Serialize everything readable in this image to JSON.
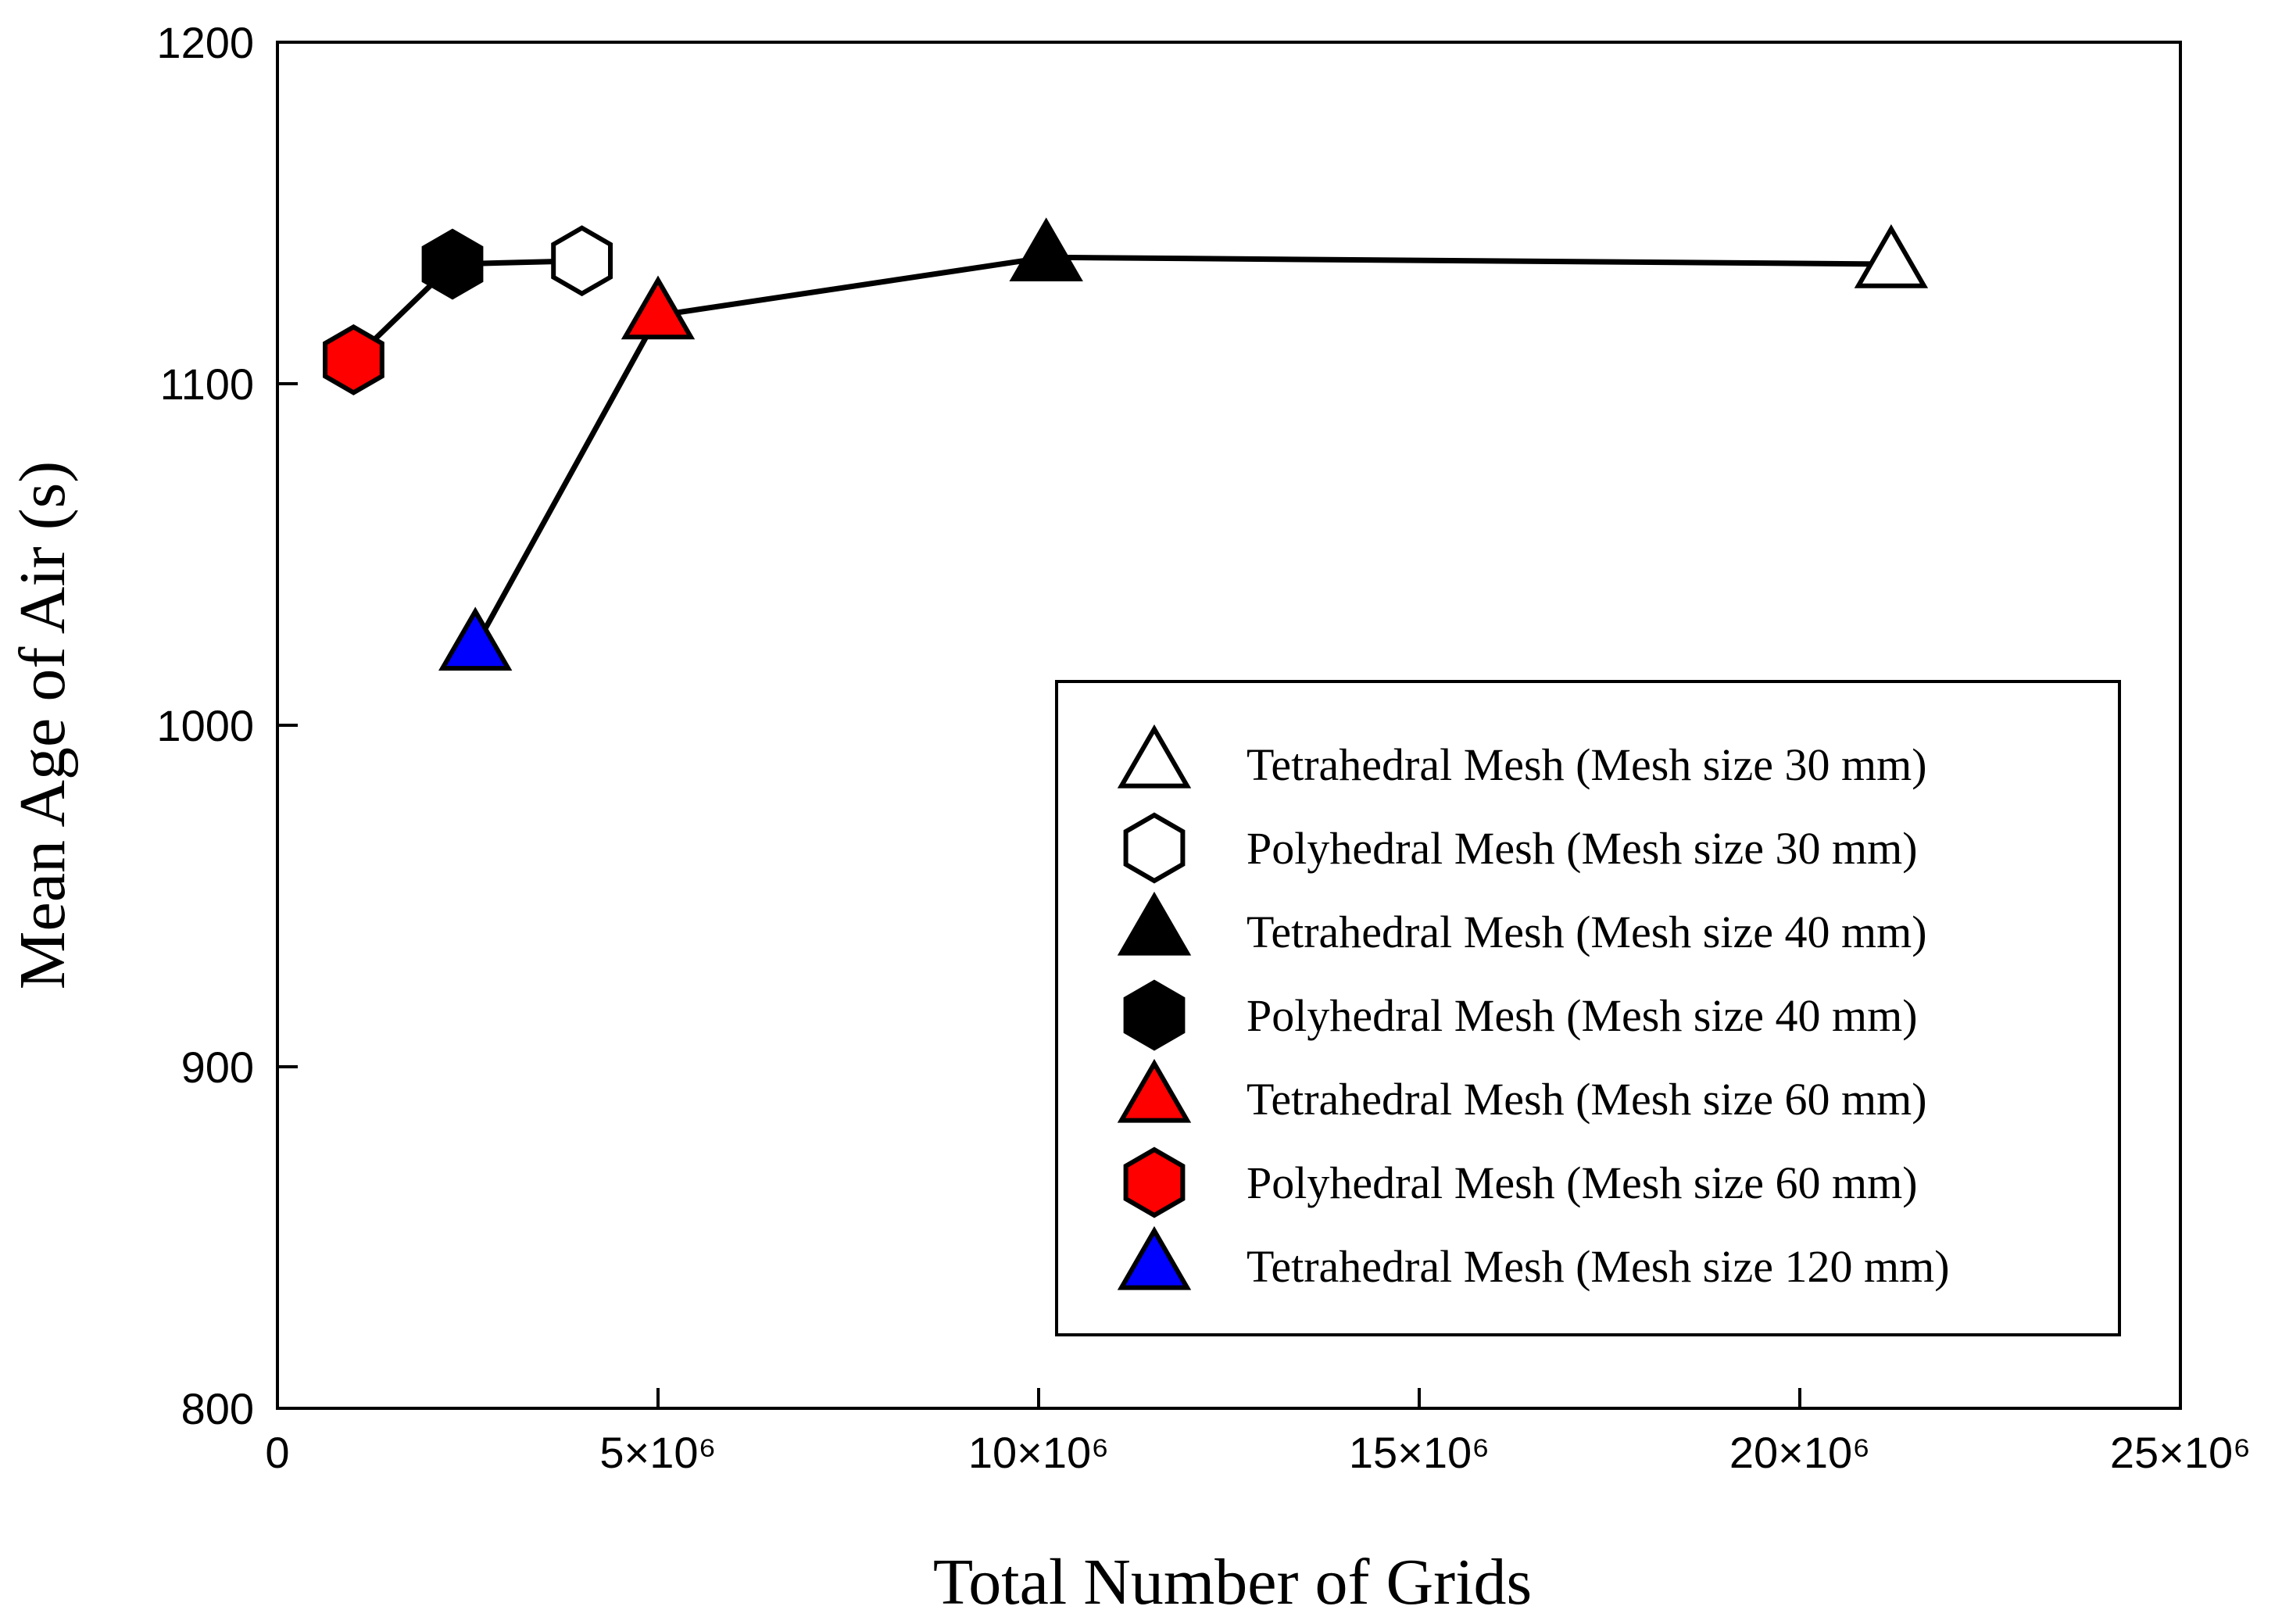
{
  "chart_data": {
    "type": "scatter",
    "title": "",
    "xlabel": "Total Number of Grids",
    "ylabel": "Mean Age of Air (s)",
    "xlim": [
      0,
      25000000
    ],
    "ylim": [
      800,
      1200
    ],
    "x_ticks": [
      {
        "value": 0,
        "label": "0"
      },
      {
        "value": 5000000,
        "label": "5×10⁶"
      },
      {
        "value": 10000000,
        "label": "10×10⁶"
      },
      {
        "value": 15000000,
        "label": "15×10⁶"
      },
      {
        "value": 20000000,
        "label": "20×10⁶"
      },
      {
        "value": 25000000,
        "label": "25×10⁶"
      }
    ],
    "y_ticks": [
      {
        "value": 800,
        "label": "800"
      },
      {
        "value": 900,
        "label": "900"
      },
      {
        "value": 1000,
        "label": "1000"
      },
      {
        "value": 1100,
        "label": "1100"
      },
      {
        "value": 1200,
        "label": "1200"
      }
    ],
    "grid": false,
    "legend_position": "bottom-right",
    "lines": [
      {
        "name": "tetrahedral-line",
        "color": "#000000",
        "points": [
          [
            2600000,
            1023
          ],
          [
            5000000,
            1120
          ],
          [
            10100000,
            1137
          ],
          [
            21200000,
            1135
          ]
        ]
      },
      {
        "name": "polyhedral-line",
        "color": "#000000",
        "points": [
          [
            1000000,
            1107
          ],
          [
            2300000,
            1135
          ],
          [
            4000000,
            1136
          ]
        ]
      }
    ],
    "series": [
      {
        "name": "Tetrahedral Mesh (Mesh size 30 mm)",
        "marker": "triangle",
        "fill": "#ffffff",
        "x": [
          21200000
        ],
        "y": [
          1135
        ]
      },
      {
        "name": "Polyhedral Mesh (Mesh size 30 mm)",
        "marker": "hexagon",
        "fill": "#ffffff",
        "x": [
          4000000
        ],
        "y": [
          1136
        ]
      },
      {
        "name": "Tetrahedral Mesh (Mesh size 40 mm)",
        "marker": "triangle",
        "fill": "#000000",
        "x": [
          10100000
        ],
        "y": [
          1137
        ]
      },
      {
        "name": "Polyhedral Mesh (Mesh size 40 mm)",
        "marker": "hexagon",
        "fill": "#000000",
        "x": [
          2300000
        ],
        "y": [
          1135
        ]
      },
      {
        "name": "Tetrahedral Mesh (Mesh size 60 mm)",
        "marker": "triangle",
        "fill": "#ff0000",
        "x": [
          5000000
        ],
        "y": [
          1120
        ]
      },
      {
        "name": "Polyhedral Mesh (Mesh size 60 mm)",
        "marker": "hexagon",
        "fill": "#ff0000",
        "x": [
          1000000
        ],
        "y": [
          1107
        ]
      },
      {
        "name": "Tetrahedral Mesh (Mesh size 120 mm)",
        "marker": "triangle",
        "fill": "#0000ff",
        "x": [
          2600000
        ],
        "y": [
          1023
        ]
      }
    ]
  }
}
